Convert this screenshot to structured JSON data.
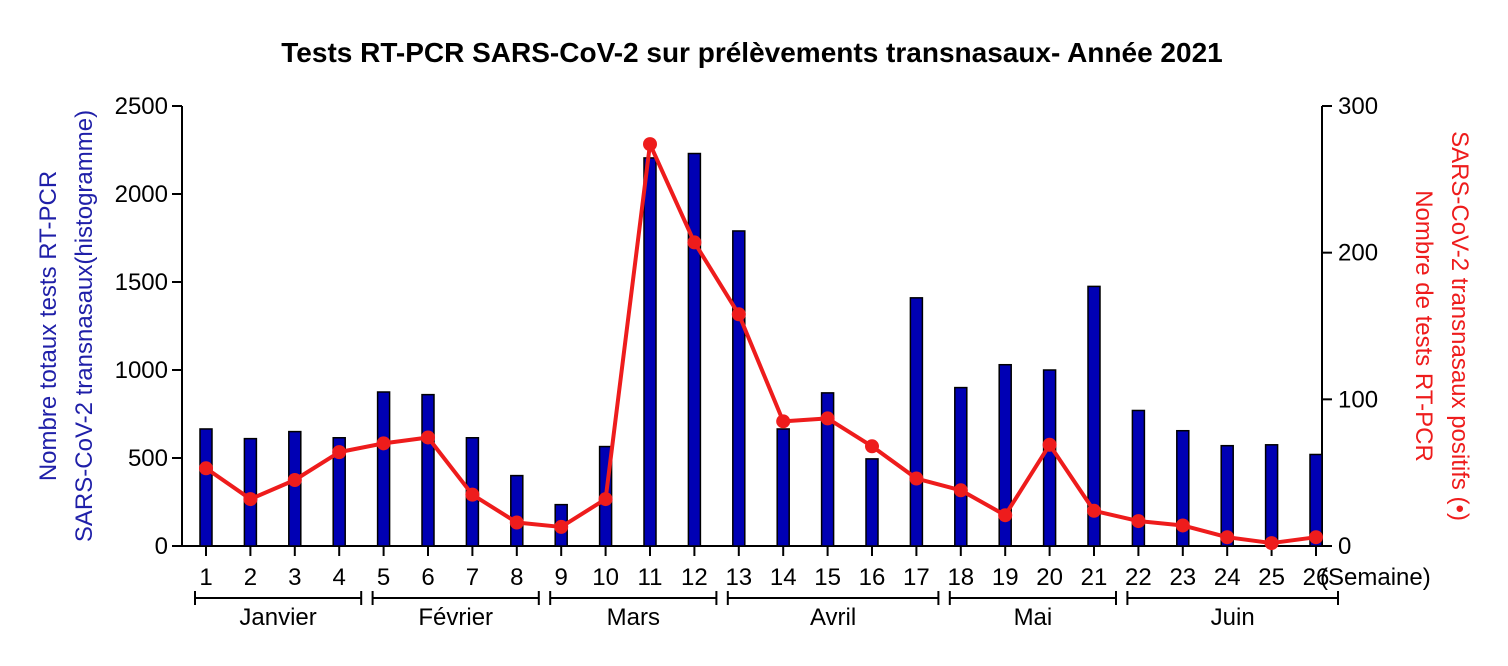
{
  "chart_data": {
    "type": "bar",
    "title": "Tests RT-PCR SARS-CoV-2 sur prélèvements transnasaux- Année 2021",
    "xlabel": "(Semaine)",
    "ylabel_left": [
      "Nombre totaux tests RT-PCR",
      "SARS-CoV-2 transnasaux(histogramme)"
    ],
    "ylabel_right": [
      "Nombre de tests RT-PCR",
      "SARS-CoV-2 transnasaux positifs (•)"
    ],
    "categories": [
      "1",
      "2",
      "3",
      "4",
      "5",
      "6",
      "7",
      "8",
      "9",
      "10",
      "11",
      "12",
      "13",
      "14",
      "15",
      "16",
      "17",
      "18",
      "19",
      "20",
      "21",
      "22",
      "23",
      "24",
      "25",
      "26"
    ],
    "ylim_left": [
      0,
      2500
    ],
    "yticks_left": [
      "0",
      "500",
      "1000",
      "1500",
      "2000",
      "2500"
    ],
    "ylim_right": [
      0,
      300
    ],
    "yticks_right": [
      "0",
      "100",
      "200",
      "300"
    ],
    "series": [
      {
        "type": "bar",
        "axis": "left",
        "color": "#0000b4",
        "values": [
          665,
          610,
          650,
          615,
          875,
          860,
          615,
          400,
          235,
          565,
          2205,
          2230,
          1790,
          665,
          870,
          495,
          1410,
          900,
          1030,
          1000,
          1475,
          770,
          655,
          570,
          575,
          520
        ]
      },
      {
        "type": "line",
        "axis": "right",
        "color": "#ee1c1c",
        "values": [
          53,
          32,
          45,
          64,
          70,
          74,
          35,
          16,
          13,
          32,
          274,
          207,
          158,
          85,
          87,
          68,
          46,
          38,
          21,
          69,
          24,
          17,
          14,
          6,
          2,
          6
        ]
      }
    ],
    "months": [
      {
        "label": "Janvier",
        "from": 1,
        "to": 4
      },
      {
        "label": "Février",
        "from": 5,
        "to": 8
      },
      {
        "label": "Mars",
        "from": 9,
        "to": 12
      },
      {
        "label": "Avril",
        "from": 13,
        "to": 17
      },
      {
        "label": "Mai",
        "from": 18,
        "to": 21
      },
      {
        "label": "Juin",
        "from": 22,
        "to": 26
      }
    ],
    "grid": false,
    "legend": "none"
  }
}
